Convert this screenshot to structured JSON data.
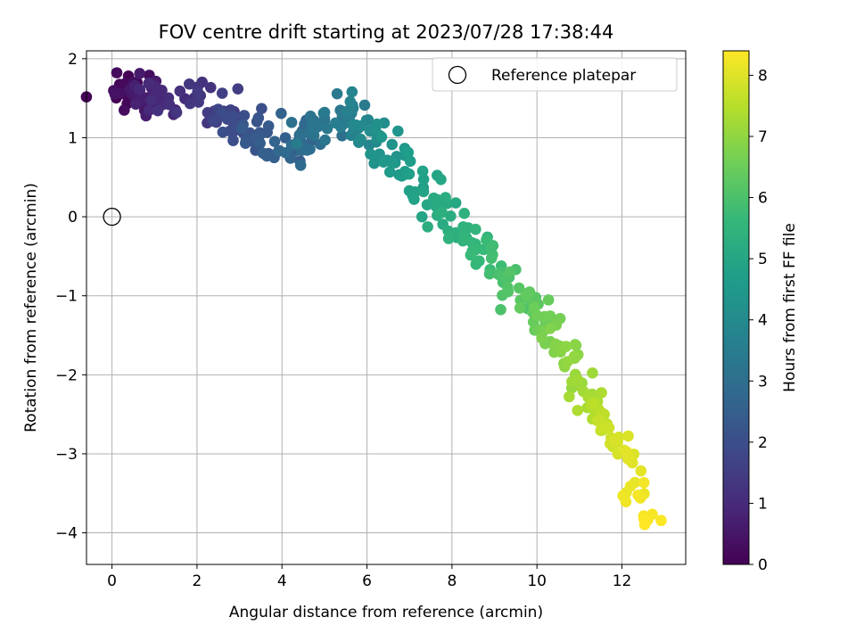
{
  "chart_data": {
    "type": "scatter",
    "title": "FOV centre drift starting at 2023/07/28 17:38:44",
    "xlabel": "Angular distance from reference (arcmin)",
    "ylabel": "Rotation from reference (arcmin)",
    "xlim": [
      -0.6,
      13.5
    ],
    "ylim": [
      -4.4,
      2.1
    ],
    "xticks": [
      0,
      2,
      4,
      6,
      8,
      10,
      12
    ],
    "xtick_labels": [
      "0",
      "2",
      "4",
      "6",
      "8",
      "10",
      "12"
    ],
    "yticks": [
      2,
      1,
      0,
      -1,
      -2,
      -3,
      -4
    ],
    "ytick_labels": [
      "2",
      "1",
      "0",
      "−1",
      "−2",
      "−3",
      "−4"
    ],
    "grid": true,
    "legend": {
      "position": "upper-right",
      "entries": [
        "Reference platepar"
      ]
    },
    "colorbar": {
      "label": "Hours from first FF file",
      "min": 0,
      "max": 8.4,
      "ticks": [
        0,
        1,
        2,
        3,
        4,
        5,
        6,
        7,
        8
      ],
      "tick_labels": [
        "0",
        "1",
        "2",
        "3",
        "4",
        "5",
        "6",
        "7",
        "8"
      ],
      "colormap": "viridis"
    },
    "reference_point": {
      "x": 0,
      "y": 0
    },
    "anchors": [
      {
        "t": 0.0,
        "x": 0.35,
        "y": 1.55
      },
      {
        "t": 0.5,
        "x": 0.7,
        "y": 1.55
      },
      {
        "t": 1.0,
        "x": 1.0,
        "y": 1.6
      },
      {
        "t": 1.5,
        "x": 2.5,
        "y": 1.4
      },
      {
        "t": 2.0,
        "x": 3.0,
        "y": 1.2
      },
      {
        "t": 2.5,
        "x": 3.9,
        "y": 0.85
      },
      {
        "t": 3.0,
        "x": 4.5,
        "y": 1.0
      },
      {
        "t": 3.5,
        "x": 5.3,
        "y": 1.35
      },
      {
        "t": 4.0,
        "x": 6.0,
        "y": 1.1
      },
      {
        "t": 4.5,
        "x": 6.7,
        "y": 0.7
      },
      {
        "t": 5.0,
        "x": 7.6,
        "y": 0.2
      },
      {
        "t": 5.5,
        "x": 8.4,
        "y": -0.3
      },
      {
        "t": 6.0,
        "x": 9.3,
        "y": -0.8
      },
      {
        "t": 6.5,
        "x": 10.1,
        "y": -1.3
      },
      {
        "t": 7.0,
        "x": 10.8,
        "y": -1.8
      },
      {
        "t": 7.5,
        "x": 11.4,
        "y": -2.5
      },
      {
        "t": 8.0,
        "x": 12.0,
        "y": -3.0
      },
      {
        "t": 8.4,
        "x": 12.6,
        "y": -3.8
      }
    ],
    "points_count": 400,
    "color_palette": [
      "#440154",
      "#482878",
      "#3e4989",
      "#31688e",
      "#26828e",
      "#1f9e89",
      "#35b779",
      "#6ece58",
      "#b5de2b",
      "#fde725"
    ]
  }
}
